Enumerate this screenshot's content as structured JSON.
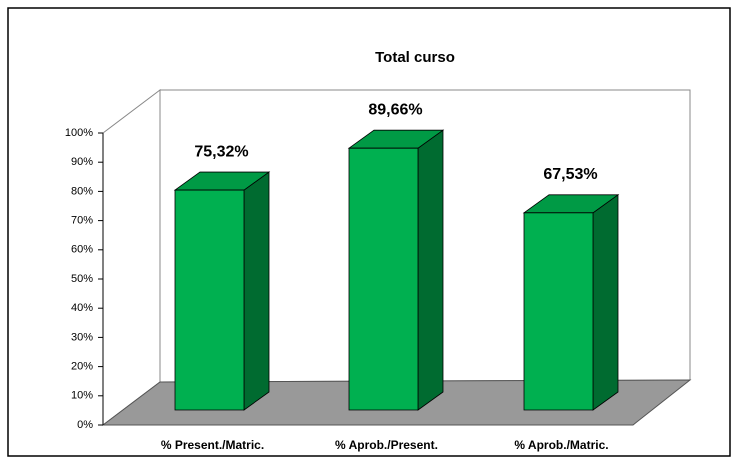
{
  "chart_data": {
    "type": "bar3d",
    "title": "Total curso",
    "categories": [
      "% Present./Matric.",
      "% Aprob./Present.",
      "% Aprob./Matric."
    ],
    "values": [
      75.32,
      89.66,
      67.53
    ],
    "value_labels": [
      "75,32%",
      "89,66%",
      "67,53%"
    ],
    "color": "#00b050",
    "ylim": [
      0,
      100
    ],
    "yticks": [
      {
        "value": 0,
        "label": "0%"
      },
      {
        "value": 10,
        "label": "10%"
      },
      {
        "value": 20,
        "label": "20%"
      },
      {
        "value": 30,
        "label": "30%"
      },
      {
        "value": 40,
        "label": "40%"
      },
      {
        "value": 50,
        "label": "50%"
      },
      {
        "value": 60,
        "label": "60%"
      },
      {
        "value": 70,
        "label": "70%"
      },
      {
        "value": 80,
        "label": "80%"
      },
      {
        "value": 90,
        "label": "90%"
      },
      {
        "value": 100,
        "label": "100%"
      }
    ]
  }
}
